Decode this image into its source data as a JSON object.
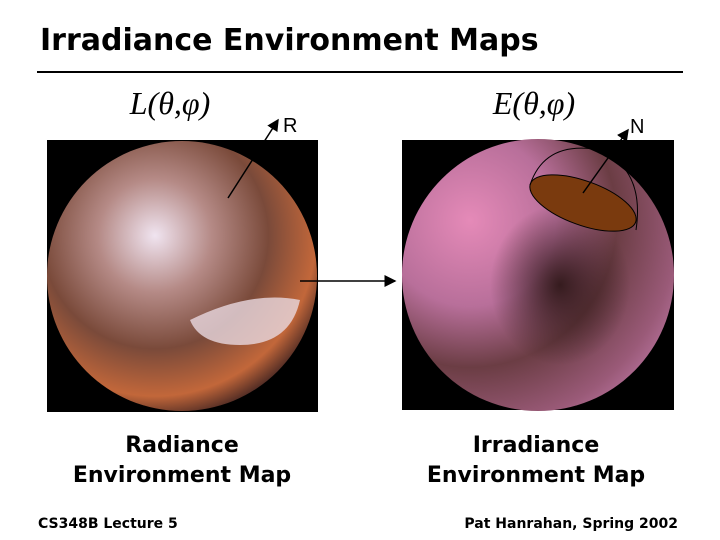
{
  "header": {
    "title": "Irradiance Environment Maps"
  },
  "left": {
    "formula": "L(θ,φ)",
    "vector_label": "R",
    "caption": [
      "Radiance",
      "Environment Map"
    ]
  },
  "right": {
    "formula": "E(θ,φ)",
    "vector_label": "N",
    "caption": [
      "Irradiance",
      "Environment Map"
    ]
  },
  "footer": {
    "left": "CS348B Lecture 5",
    "right": "Pat Hanrahan, Spring 2002"
  }
}
